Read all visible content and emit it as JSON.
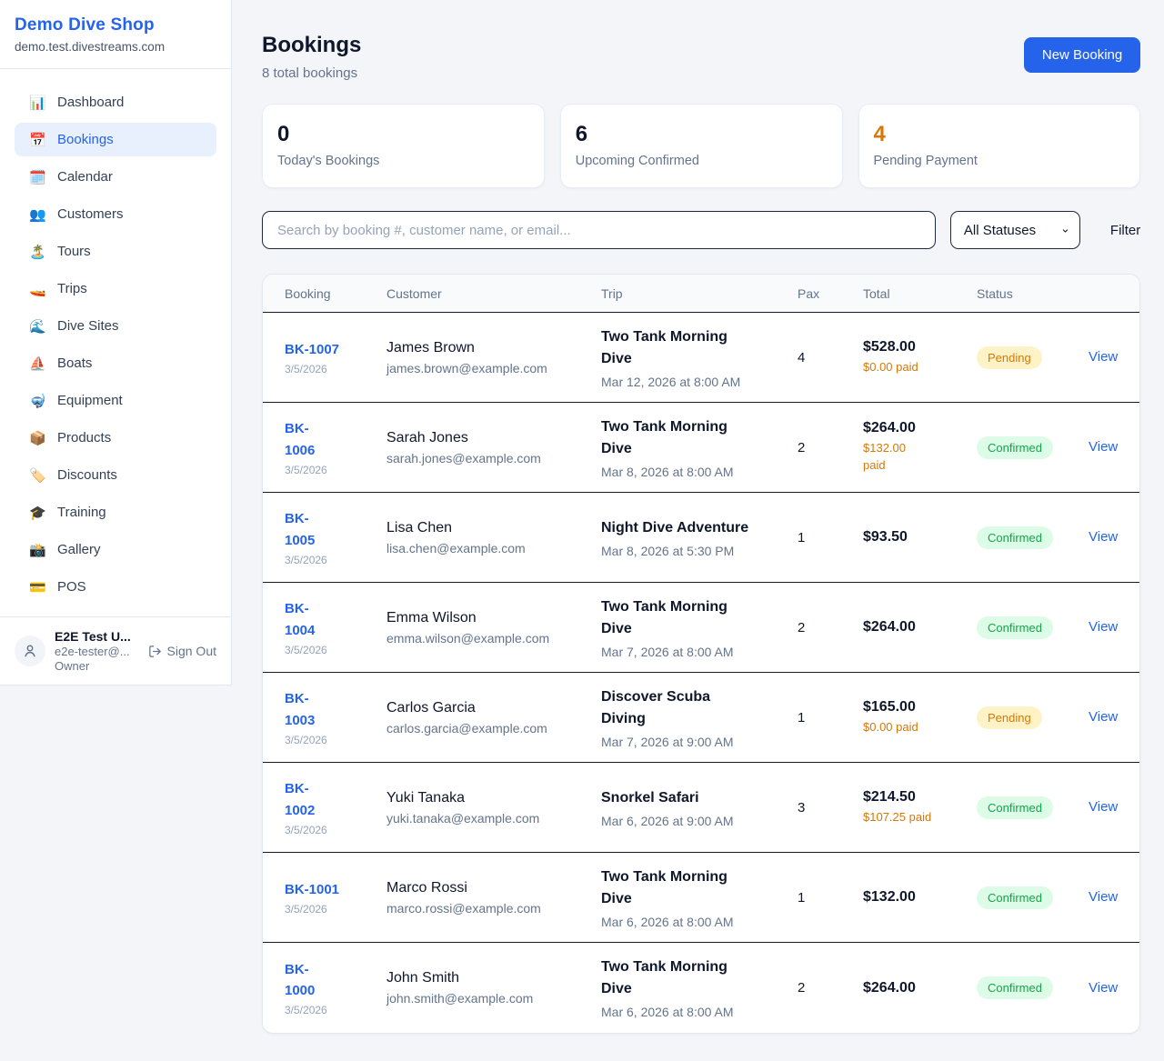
{
  "sidebar": {
    "brand": {
      "name": "Demo Dive Shop",
      "domain": "demo.test.divestreams.com"
    },
    "items": [
      {
        "key": "dashboard",
        "icon": "📊",
        "icon_name": "bar-chart-icon",
        "label": "Dashboard",
        "active": false
      },
      {
        "key": "bookings",
        "icon": "📅",
        "icon_name": "calendar-date-icon",
        "label": "Bookings",
        "active": true
      },
      {
        "key": "calendar",
        "icon": "🗓️",
        "icon_name": "spiral-calendar-icon",
        "label": "Calendar",
        "active": false
      },
      {
        "key": "customers",
        "icon": "👥",
        "icon_name": "people-icon",
        "label": "Customers",
        "active": false
      },
      {
        "key": "tours",
        "icon": "🏝️",
        "icon_name": "island-icon",
        "label": "Tours",
        "active": false
      },
      {
        "key": "trips",
        "icon": "🚤",
        "icon_name": "speedboat-icon",
        "label": "Trips",
        "active": false
      },
      {
        "key": "dive-sites",
        "icon": "🌊",
        "icon_name": "wave-icon",
        "label": "Dive Sites",
        "active": false
      },
      {
        "key": "boats",
        "icon": "⛵",
        "icon_name": "sailboat-icon",
        "label": "Boats",
        "active": false
      },
      {
        "key": "equipment",
        "icon": "🤿",
        "icon_name": "diving-mask-icon",
        "label": "Equipment",
        "active": false
      },
      {
        "key": "products",
        "icon": "📦",
        "icon_name": "package-icon",
        "label": "Products",
        "active": false
      },
      {
        "key": "discounts",
        "icon": "🏷️",
        "icon_name": "tag-icon",
        "label": "Discounts",
        "active": false
      },
      {
        "key": "training",
        "icon": "🎓",
        "icon_name": "graduation-cap-icon",
        "label": "Training",
        "active": false
      },
      {
        "key": "gallery",
        "icon": "📸",
        "icon_name": "camera-flash-icon",
        "label": "Gallery",
        "active": false
      },
      {
        "key": "pos",
        "icon": "💳",
        "icon_name": "credit-card-icon",
        "label": "POS",
        "active": false
      }
    ],
    "user": {
      "name": "E2E Test U...",
      "email": "e2e-tester@...",
      "role": "Owner",
      "sign_out": "Sign Out"
    }
  },
  "header": {
    "title": "Bookings",
    "subtitle": "8 total bookings",
    "new_booking_label": "New Booking"
  },
  "stats": [
    {
      "value": "0",
      "label": "Today's Bookings",
      "color": "#0f172a"
    },
    {
      "value": "6",
      "label": "Upcoming Confirmed",
      "color": "#0f172a"
    },
    {
      "value": "4",
      "label": "Pending Payment",
      "color": "#d97706"
    }
  ],
  "filters": {
    "search_placeholder": "Search by booking #, customer name, or email...",
    "status_selected": "All Statuses",
    "filter_label": "Filter"
  },
  "table": {
    "headers": [
      "Booking",
      "Customer",
      "Trip",
      "Pax",
      "Total",
      "Status"
    ],
    "view_label": "View",
    "rows": [
      {
        "id": "BK-1007",
        "date": "3/5/2026",
        "customer_name": "James Brown",
        "customer_email": "james.brown@example.com",
        "trip_name": "Two Tank Morning\nDive",
        "trip_datetime": "Mar 12, 2026 at 8:00 AM",
        "pax": "4",
        "total": "$528.00",
        "paid": "$0.00 paid",
        "status": "Pending"
      },
      {
        "id": "BK-\n1006",
        "date": "3/5/2026",
        "customer_name": "Sarah Jones",
        "customer_email": "sarah.jones@example.com",
        "trip_name": "Two Tank Morning\nDive",
        "trip_datetime": "Mar 8, 2026 at 8:00 AM",
        "pax": "2",
        "total": "$264.00",
        "paid": "$132.00\npaid",
        "status": "Confirmed"
      },
      {
        "id": "BK-\n1005",
        "date": "3/5/2026",
        "customer_name": "Lisa Chen",
        "customer_email": "lisa.chen@example.com",
        "trip_name": "Night Dive Adventure",
        "trip_datetime": "Mar 8, 2026 at 5:30 PM",
        "pax": "1",
        "total": "$93.50",
        "paid": "",
        "status": "Confirmed"
      },
      {
        "id": "BK-\n1004",
        "date": "3/5/2026",
        "customer_name": "Emma Wilson",
        "customer_email": "emma.wilson@example.com",
        "trip_name": "Two Tank Morning\nDive",
        "trip_datetime": "Mar 7, 2026 at 8:00 AM",
        "pax": "2",
        "total": "$264.00",
        "paid": "",
        "status": "Confirmed"
      },
      {
        "id": "BK-\n1003",
        "date": "3/5/2026",
        "customer_name": "Carlos Garcia",
        "customer_email": "carlos.garcia@example.com",
        "trip_name": "Discover Scuba\nDiving",
        "trip_datetime": "Mar 7, 2026 at 9:00 AM",
        "pax": "1",
        "total": "$165.00",
        "paid": "$0.00 paid",
        "status": "Pending"
      },
      {
        "id": "BK-\n1002",
        "date": "3/5/2026",
        "customer_name": "Yuki Tanaka",
        "customer_email": "yuki.tanaka@example.com",
        "trip_name": "Snorkel Safari",
        "trip_datetime": "Mar 6, 2026 at 9:00 AM",
        "pax": "3",
        "total": "$214.50",
        "paid": "$107.25 paid",
        "status": "Confirmed"
      },
      {
        "id": "BK-1001",
        "date": "3/5/2026",
        "customer_name": "Marco Rossi",
        "customer_email": "marco.rossi@example.com",
        "trip_name": "Two Tank Morning\nDive",
        "trip_datetime": "Mar 6, 2026 at 8:00 AM",
        "pax": "1",
        "total": "$132.00",
        "paid": "",
        "status": "Confirmed"
      },
      {
        "id": "BK-\n1000",
        "date": "3/5/2026",
        "customer_name": "John Smith",
        "customer_email": "john.smith@example.com",
        "trip_name": "Two Tank Morning\nDive",
        "trip_datetime": "Mar 6, 2026 at 8:00 AM",
        "pax": "2",
        "total": "$264.00",
        "paid": "",
        "status": "Confirmed"
      }
    ]
  },
  "colors": {
    "brand_blue": "#2563eb",
    "pending_text": "#d97706",
    "pending_bg": "#fef3c7",
    "confirmed_text": "#16a34a",
    "confirmed_bg": "#dcfce7",
    "active_nav_bg": "#e8f0fe"
  }
}
